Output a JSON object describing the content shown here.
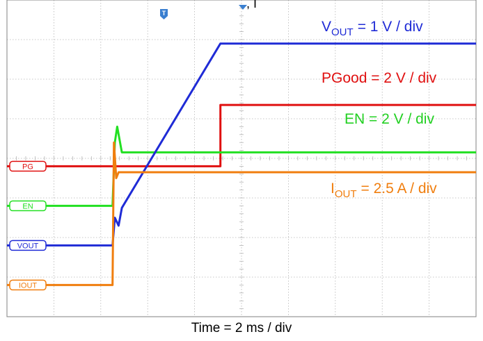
{
  "chart_data": {
    "type": "line",
    "title_fragment": ", I",
    "xlabel": "Time = 2 ms / div",
    "x_divisions": 10,
    "y_divisions": 8,
    "grid": true,
    "trigger_label": "T",
    "colors": {
      "vout": "#1f2bd6",
      "pgood": "#e01010",
      "en": "#22e022",
      "iout": "#f07e0e",
      "grid": "#b5b5b5",
      "frame": "#808080"
    },
    "annotations": {
      "vout_main": "V",
      "vout_sub": "OUT",
      "vout_scale": "= 1 V / div",
      "pgood": "PGood = 2 V / div",
      "en": "EN = 2 V / div",
      "iout_main": "I",
      "iout_sub": "OUT",
      "iout_scale": "= 2.5 A / div"
    },
    "series": [
      {
        "name": "PG",
        "color": "pgood",
        "x": [
          0,
          4.55,
          4.55,
          10
        ],
        "y": [
          3.8,
          3.8,
          5.35,
          5.35
        ]
      },
      {
        "name": "EN",
        "color": "en",
        "x": [
          0,
          2.25,
          2.3,
          2.35,
          2.45,
          10
        ],
        "y": [
          2.8,
          2.8,
          4.4,
          4.8,
          4.15,
          4.15
        ]
      },
      {
        "name": "VOUT",
        "color": "vout",
        "x": [
          0,
          2.25,
          2.3,
          2.38,
          2.45,
          4.55,
          10
        ],
        "y": [
          1.8,
          1.8,
          2.5,
          2.3,
          2.75,
          6.9,
          6.9
        ]
      },
      {
        "name": "IOUT",
        "color": "iout",
        "x": [
          0,
          2.25,
          2.28,
          2.33,
          2.38,
          10
        ],
        "y": [
          0.8,
          0.8,
          4.4,
          3.5,
          3.65,
          3.65
        ]
      }
    ]
  }
}
